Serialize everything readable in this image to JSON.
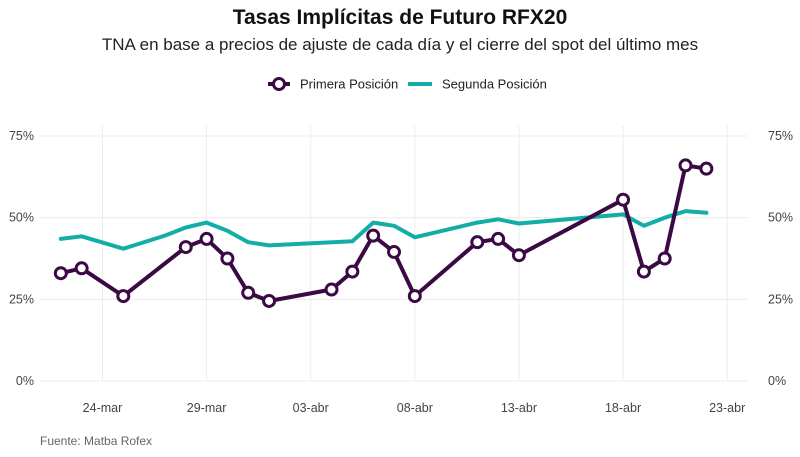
{
  "chart_data": {
    "type": "line",
    "title": "Tasas Implícitas de Futuro RFX20",
    "subtitle": "TNA en base a precios de ajuste de cada día y el cierre del spot del último mes",
    "source": "Fuente: Matba Rofex",
    "xlabel": "",
    "ylabel": "",
    "ylim": [
      0,
      75
    ],
    "yticks": [
      0,
      25,
      50,
      75
    ],
    "ytick_labels": [
      "0%",
      "25%",
      "50%",
      "75%"
    ],
    "xlim": [
      "2021-03-21",
      "2021-04-24"
    ],
    "xticks": [
      "2021-03-24",
      "2021-03-29",
      "2021-04-03",
      "2021-04-08",
      "2021-04-13",
      "2021-04-18",
      "2021-04-23"
    ],
    "xtick_labels": [
      "24-mar",
      "29-mar",
      "03-abr",
      "08-abr",
      "13-abr",
      "18-abr",
      "23-abr"
    ],
    "grid": true,
    "legend_position": "top-center",
    "series": [
      {
        "name": "Primera Posición",
        "color": "#3b0a45",
        "marker": "circle",
        "points": [
          {
            "x": "2021-03-22",
            "y": 33
          },
          {
            "x": "2021-03-23",
            "y": 34.5
          },
          {
            "x": "2021-03-25",
            "y": 26
          },
          {
            "x": "2021-03-28",
            "y": 41
          },
          {
            "x": "2021-03-29",
            "y": 43.5
          },
          {
            "x": "2021-03-30",
            "y": 37.5
          },
          {
            "x": "2021-03-31",
            "y": 27
          },
          {
            "x": "2021-04-01",
            "y": 24.5
          },
          {
            "x": "2021-04-04",
            "y": 28
          },
          {
            "x": "2021-04-05",
            "y": 33.5
          },
          {
            "x": "2021-04-06",
            "y": 44.5
          },
          {
            "x": "2021-04-07",
            "y": 39.5
          },
          {
            "x": "2021-04-08",
            "y": 26
          },
          {
            "x": "2021-04-11",
            "y": 42.5
          },
          {
            "x": "2021-04-12",
            "y": 43.5
          },
          {
            "x": "2021-04-13",
            "y": 38.5
          },
          {
            "x": "2021-04-18",
            "y": 55.5
          },
          {
            "x": "2021-04-19",
            "y": 33.5
          },
          {
            "x": "2021-04-20",
            "y": 37.5
          },
          {
            "x": "2021-04-21",
            "y": 66
          },
          {
            "x": "2021-04-22",
            "y": 65
          }
        ]
      },
      {
        "name": "Segunda Posición",
        "color": "#13ada8",
        "marker": "none",
        "points": [
          {
            "x": "2021-03-22",
            "y": 43.5
          },
          {
            "x": "2021-03-23",
            "y": 44.3
          },
          {
            "x": "2021-03-25",
            "y": 40.5
          },
          {
            "x": "2021-03-27",
            "y": 44.5
          },
          {
            "x": "2021-03-28",
            "y": 47
          },
          {
            "x": "2021-03-29",
            "y": 48.5
          },
          {
            "x": "2021-03-30",
            "y": 46
          },
          {
            "x": "2021-03-31",
            "y": 42.5
          },
          {
            "x": "2021-04-01",
            "y": 41.5
          },
          {
            "x": "2021-04-05",
            "y": 42.8
          },
          {
            "x": "2021-04-06",
            "y": 48.5
          },
          {
            "x": "2021-04-07",
            "y": 47.5
          },
          {
            "x": "2021-04-08",
            "y": 44
          },
          {
            "x": "2021-04-11",
            "y": 48.5
          },
          {
            "x": "2021-04-12",
            "y": 49.5
          },
          {
            "x": "2021-04-13",
            "y": 48.2
          },
          {
            "x": "2021-04-18",
            "y": 51
          },
          {
            "x": "2021-04-19",
            "y": 47.5
          },
          {
            "x": "2021-04-20",
            "y": 50
          },
          {
            "x": "2021-04-21",
            "y": 52
          },
          {
            "x": "2021-04-22",
            "y": 51.5
          }
        ]
      }
    ]
  }
}
